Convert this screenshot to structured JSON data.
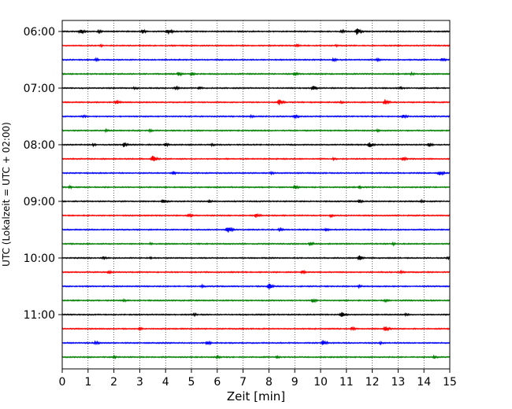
{
  "chart_data": {
    "type": "line",
    "title": "",
    "xlabel": "Zeit  [min]",
    "ylabel": "UTC (Lokalzeit = UTC + 02:00)",
    "xlim": [
      0,
      15
    ],
    "x_ticks": [
      0,
      1,
      2,
      3,
      4,
      5,
      6,
      7,
      8,
      9,
      10,
      11,
      12,
      13,
      14,
      15
    ],
    "y_tick_labels": [
      "06:00",
      "07:00",
      "08:00",
      "09:00",
      "10:00",
      "11:00"
    ],
    "x_grid": "dotted vertical lines at each minute",
    "trace_start_time": "06:00",
    "trace_interval_min": 15,
    "color_cycle": [
      "#000000",
      "#ff0000",
      "#0000ff",
      "#008000"
    ],
    "traces": [
      {
        "start": "06:00",
        "color": "#000000",
        "events": [
          [
            0.7,
            8
          ],
          [
            1.4,
            5
          ],
          [
            3.1,
            6
          ],
          [
            4.1,
            9
          ],
          [
            11.4,
            10
          ],
          [
            10.8,
            5
          ]
        ]
      },
      {
        "start": "06:15",
        "color": "#ff0000",
        "events": [
          [
            1.5,
            3
          ],
          [
            9.1,
            4
          ],
          [
            10.6,
            3
          ]
        ]
      },
      {
        "start": "06:30",
        "color": "#0000ff",
        "events": [
          [
            1.3,
            4
          ],
          [
            10.5,
            5
          ],
          [
            12.2,
            4
          ],
          [
            14.7,
            5
          ]
        ]
      },
      {
        "start": "06:45",
        "color": "#008000",
        "events": [
          [
            4.5,
            6
          ],
          [
            9.0,
            5
          ],
          [
            5.0,
            5
          ],
          [
            13.5,
            4
          ]
        ]
      },
      {
        "start": "07:00",
        "color": "#000000",
        "events": [
          [
            2.8,
            4
          ],
          [
            4.4,
            5
          ],
          [
            5.3,
            5
          ],
          [
            9.7,
            8
          ],
          [
            13.1,
            4
          ]
        ]
      },
      {
        "start": "07:15",
        "color": "#ff0000",
        "events": [
          [
            2.1,
            6
          ],
          [
            8.4,
            8
          ],
          [
            12.5,
            9
          ],
          [
            10.8,
            4
          ]
        ]
      },
      {
        "start": "07:30",
        "color": "#0000ff",
        "events": [
          [
            0.8,
            4
          ],
          [
            7.3,
            4
          ],
          [
            9.0,
            7
          ],
          [
            13.2,
            6
          ]
        ]
      },
      {
        "start": "07:45",
        "color": "#008000",
        "events": [
          [
            1.7,
            4
          ],
          [
            3.4,
            4
          ],
          [
            12.2,
            4
          ]
        ]
      },
      {
        "start": "08:00",
        "color": "#000000",
        "events": [
          [
            1.2,
            4
          ],
          [
            2.4,
            6
          ],
          [
            4.0,
            5
          ],
          [
            5.8,
            4
          ],
          [
            11.9,
            8
          ],
          [
            14.2,
            6
          ]
        ]
      },
      {
        "start": "08:15",
        "color": "#ff0000",
        "events": [
          [
            3.5,
            10
          ],
          [
            10.5,
            4
          ],
          [
            13.2,
            5
          ]
        ]
      },
      {
        "start": "08:30",
        "color": "#0000ff",
        "events": [
          [
            4.3,
            5
          ],
          [
            8.1,
            4
          ],
          [
            14.6,
            8
          ]
        ]
      },
      {
        "start": "08:45",
        "color": "#008000",
        "events": [
          [
            0.3,
            4
          ],
          [
            9.0,
            6
          ],
          [
            11.5,
            4
          ]
        ]
      },
      {
        "start": "09:00",
        "color": "#000000",
        "events": [
          [
            3.9,
            6
          ],
          [
            5.7,
            4
          ],
          [
            11.5,
            5
          ],
          [
            13.9,
            4
          ]
        ]
      },
      {
        "start": "09:15",
        "color": "#ff0000",
        "events": [
          [
            4.9,
            5
          ],
          [
            7.5,
            7
          ],
          [
            10.4,
            5
          ]
        ]
      },
      {
        "start": "09:30",
        "color": "#0000ff",
        "events": [
          [
            6.4,
            10
          ],
          [
            8.4,
            5
          ],
          [
            10.2,
            4
          ]
        ]
      },
      {
        "start": "09:45",
        "color": "#008000",
        "events": [
          [
            9.6,
            6
          ],
          [
            12.8,
            4
          ],
          [
            3.4,
            3
          ]
        ]
      },
      {
        "start": "10:00",
        "color": "#000000",
        "events": [
          [
            1.6,
            4
          ],
          [
            3.4,
            3
          ],
          [
            11.5,
            7
          ],
          [
            14.9,
            4
          ]
        ]
      },
      {
        "start": "10:15",
        "color": "#ff0000",
        "events": [
          [
            1.8,
            4
          ],
          [
            9.3,
            5
          ],
          [
            13.1,
            4
          ]
        ]
      },
      {
        "start": "10:30",
        "color": "#0000ff",
        "events": [
          [
            8.0,
            8
          ],
          [
            5.4,
            4
          ],
          [
            11.5,
            4
          ]
        ]
      },
      {
        "start": "10:45",
        "color": "#008000",
        "events": [
          [
            2.4,
            4
          ],
          [
            9.7,
            6
          ],
          [
            12.5,
            4
          ]
        ]
      },
      {
        "start": "11:00",
        "color": "#000000",
        "events": [
          [
            5.1,
            5
          ],
          [
            10.8,
            9
          ],
          [
            13.3,
            4
          ]
        ]
      },
      {
        "start": "11:15",
        "color": "#ff0000",
        "events": [
          [
            3.0,
            4
          ],
          [
            11.2,
            5
          ],
          [
            12.5,
            8
          ]
        ]
      },
      {
        "start": "11:30",
        "color": "#0000ff",
        "events": [
          [
            1.3,
            5
          ],
          [
            5.6,
            6
          ],
          [
            10.1,
            8
          ],
          [
            12.3,
            4
          ]
        ]
      },
      {
        "start": "11:45",
        "color": "#008000",
        "events": [
          [
            2.0,
            4
          ],
          [
            6.0,
            4
          ],
          [
            8.3,
            4
          ],
          [
            14.4,
            4
          ]
        ]
      }
    ]
  }
}
